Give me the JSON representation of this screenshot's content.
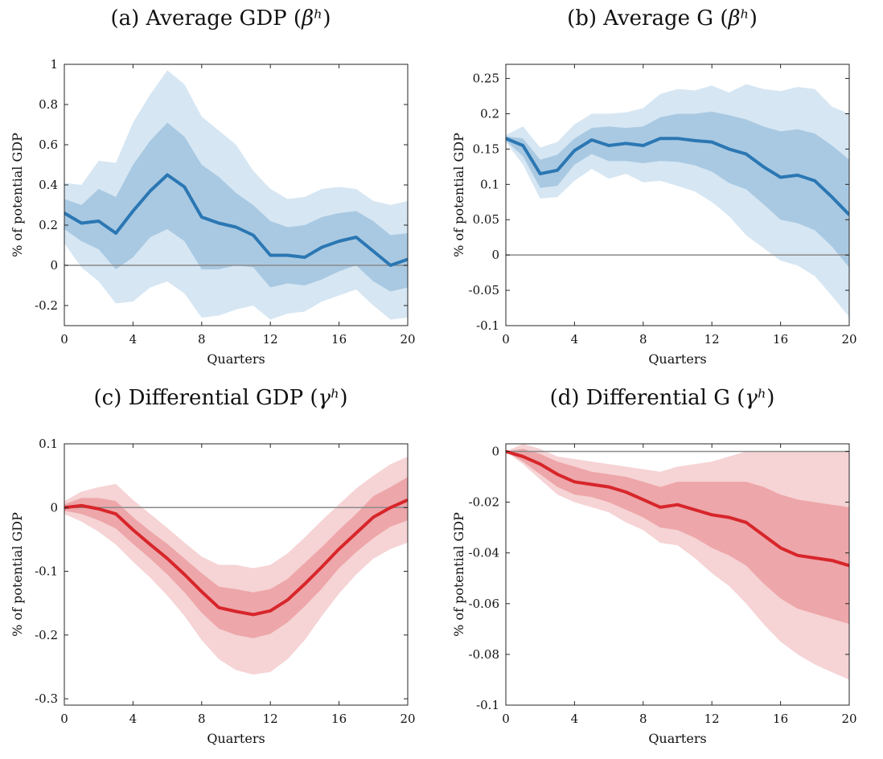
{
  "chart_data": [
    {
      "type": "line",
      "title_prefix": "(a) Average GDP (",
      "title_symbol": "βʰ",
      "title_suffix": ")",
      "xlabel": "Quarters",
      "ylabel": "% of potential GDP",
      "xlim": [
        0,
        20
      ],
      "ylim": [
        -0.3,
        1
      ],
      "xticks": [
        0,
        4,
        8,
        12,
        16,
        20
      ],
      "yticks": [
        -0.2,
        0,
        0.2,
        0.4,
        0.6,
        0.8,
        1
      ],
      "ytick_labels": [
        "-0.2",
        "0",
        "0.2",
        "0.4",
        "0.6",
        "0.8",
        "1"
      ],
      "color_line": "#2b77b3",
      "color_inner": "#a9c9e2",
      "color_outer": "#d6e6f3",
      "x": [
        0,
        1,
        2,
        3,
        4,
        5,
        6,
        7,
        8,
        9,
        10,
        11,
        12,
        13,
        14,
        15,
        16,
        17,
        18,
        19,
        20
      ],
      "series": [
        {
          "role": "estimate",
          "values": [
            0.26,
            0.21,
            0.22,
            0.16,
            0.27,
            0.37,
            0.45,
            0.39,
            0.24,
            0.21,
            0.19,
            0.15,
            0.05,
            0.05,
            0.04,
            0.09,
            0.12,
            0.14,
            0.07,
            0.0,
            0.03
          ]
        },
        {
          "role": "inner_upper",
          "values": [
            0.33,
            0.3,
            0.38,
            0.34,
            0.5,
            0.62,
            0.71,
            0.64,
            0.5,
            0.44,
            0.36,
            0.3,
            0.22,
            0.19,
            0.2,
            0.24,
            0.26,
            0.27,
            0.22,
            0.15,
            0.16
          ]
        },
        {
          "role": "inner_lower",
          "values": [
            0.18,
            0.12,
            0.08,
            -0.02,
            0.04,
            0.14,
            0.18,
            0.12,
            -0.02,
            -0.02,
            0.0,
            -0.01,
            -0.11,
            -0.09,
            -0.1,
            -0.07,
            -0.03,
            0.0,
            -0.08,
            -0.13,
            -0.11
          ]
        },
        {
          "role": "outer_upper",
          "values": [
            0.41,
            0.4,
            0.52,
            0.51,
            0.71,
            0.85,
            0.97,
            0.9,
            0.74,
            0.67,
            0.6,
            0.47,
            0.38,
            0.33,
            0.34,
            0.38,
            0.39,
            0.38,
            0.32,
            0.3,
            0.32
          ]
        },
        {
          "role": "outer_lower",
          "values": [
            0.11,
            -0.01,
            -0.08,
            -0.19,
            -0.18,
            -0.11,
            -0.08,
            -0.14,
            -0.26,
            -0.25,
            -0.22,
            -0.2,
            -0.27,
            -0.24,
            -0.23,
            -0.18,
            -0.15,
            -0.12,
            -0.2,
            -0.27,
            -0.26
          ]
        }
      ]
    },
    {
      "type": "line",
      "title_prefix": "(b) Average G (",
      "title_symbol": "βʰ",
      "title_suffix": ")",
      "xlabel": "Quarters",
      "ylabel": "% of potential GDP",
      "xlim": [
        0,
        20
      ],
      "ylim": [
        -0.1,
        0.27
      ],
      "xticks": [
        0,
        4,
        8,
        12,
        16,
        20
      ],
      "yticks": [
        -0.1,
        -0.05,
        0,
        0.05,
        0.1,
        0.15,
        0.2,
        0.25
      ],
      "ytick_labels": [
        "-0.1",
        "-0.05",
        "0",
        "0.05",
        "0.1",
        "0.15",
        "0.2",
        "0.25"
      ],
      "color_line": "#2b77b3",
      "color_inner": "#a9c9e2",
      "color_outer": "#d6e6f3",
      "x": [
        0,
        1,
        2,
        3,
        4,
        5,
        6,
        7,
        8,
        9,
        10,
        11,
        12,
        13,
        14,
        15,
        16,
        17,
        18,
        19,
        20
      ],
      "series": [
        {
          "role": "estimate",
          "values": [
            0.165,
            0.155,
            0.115,
            0.12,
            0.148,
            0.163,
            0.155,
            0.158,
            0.155,
            0.165,
            0.165,
            0.162,
            0.16,
            0.15,
            0.143,
            0.125,
            0.11,
            0.113,
            0.105,
            0.082,
            0.057
          ]
        },
        {
          "role": "inner_upper",
          "values": [
            0.168,
            0.165,
            0.135,
            0.142,
            0.165,
            0.18,
            0.182,
            0.18,
            0.182,
            0.195,
            0.2,
            0.2,
            0.203,
            0.198,
            0.192,
            0.182,
            0.175,
            0.178,
            0.172,
            0.155,
            0.135
          ]
        },
        {
          "role": "inner_lower",
          "values": [
            0.162,
            0.14,
            0.095,
            0.098,
            0.128,
            0.143,
            0.133,
            0.133,
            0.13,
            0.133,
            0.132,
            0.127,
            0.118,
            0.102,
            0.093,
            0.072,
            0.05,
            0.045,
            0.035,
            0.012,
            -0.018
          ]
        },
        {
          "role": "outer_upper",
          "values": [
            0.17,
            0.182,
            0.152,
            0.16,
            0.185,
            0.2,
            0.2,
            0.202,
            0.208,
            0.228,
            0.235,
            0.233,
            0.24,
            0.23,
            0.242,
            0.235,
            0.232,
            0.238,
            0.235,
            0.21,
            0.2
          ]
        },
        {
          "role": "outer_lower",
          "values": [
            0.16,
            0.128,
            0.08,
            0.082,
            0.105,
            0.122,
            0.108,
            0.115,
            0.103,
            0.105,
            0.098,
            0.09,
            0.075,
            0.055,
            0.028,
            0.01,
            -0.008,
            -0.015,
            -0.03,
            -0.058,
            -0.088
          ]
        }
      ]
    },
    {
      "type": "line",
      "title_prefix": "(c) Differential GDP (",
      "title_symbol": "γʰ",
      "title_suffix": ")",
      "xlabel": "Quarters",
      "ylabel": "% of potential GDP",
      "xlim": [
        0,
        20
      ],
      "ylim": [
        -0.31,
        0.1
      ],
      "xticks": [
        0,
        4,
        8,
        12,
        16,
        20
      ],
      "yticks": [
        -0.3,
        -0.2,
        -0.1,
        0,
        0.1
      ],
      "ytick_labels": [
        "-0.3",
        "-0.2",
        "-0.1",
        "0",
        "0.1"
      ],
      "color_line": "#d7262b",
      "color_inner": "#eda6a9",
      "color_outer": "#f6d3d5",
      "x": [
        0,
        1,
        2,
        3,
        4,
        5,
        6,
        7,
        8,
        9,
        10,
        11,
        12,
        13,
        14,
        15,
        16,
        17,
        18,
        19,
        20
      ],
      "series": [
        {
          "role": "estimate",
          "values": [
            0.0,
            0.003,
            -0.002,
            -0.01,
            -0.035,
            -0.058,
            -0.08,
            -0.105,
            -0.132,
            -0.157,
            -0.163,
            -0.168,
            -0.162,
            -0.145,
            -0.12,
            -0.093,
            -0.065,
            -0.04,
            -0.015,
            0.0,
            0.012
          ]
        },
        {
          "role": "inner_upper",
          "values": [
            0.005,
            0.015,
            0.015,
            0.01,
            -0.015,
            -0.037,
            -0.057,
            -0.08,
            -0.103,
            -0.124,
            -0.128,
            -0.133,
            -0.128,
            -0.112,
            -0.087,
            -0.062,
            -0.035,
            -0.01,
            0.018,
            0.032,
            0.048
          ]
        },
        {
          "role": "inner_lower",
          "values": [
            -0.005,
            -0.01,
            -0.02,
            -0.033,
            -0.057,
            -0.08,
            -0.105,
            -0.133,
            -0.165,
            -0.19,
            -0.2,
            -0.205,
            -0.198,
            -0.18,
            -0.155,
            -0.127,
            -0.095,
            -0.07,
            -0.048,
            -0.03,
            -0.02
          ]
        },
        {
          "role": "outer_upper",
          "values": [
            0.01,
            0.025,
            0.032,
            0.037,
            0.012,
            -0.01,
            -0.032,
            -0.055,
            -0.077,
            -0.09,
            -0.09,
            -0.095,
            -0.09,
            -0.072,
            -0.047,
            -0.02,
            0.005,
            0.03,
            0.05,
            0.068,
            0.08
          ]
        },
        {
          "role": "outer_lower",
          "values": [
            -0.01,
            -0.022,
            -0.038,
            -0.058,
            -0.085,
            -0.11,
            -0.138,
            -0.17,
            -0.208,
            -0.238,
            -0.255,
            -0.262,
            -0.258,
            -0.238,
            -0.208,
            -0.17,
            -0.135,
            -0.105,
            -0.08,
            -0.065,
            -0.055
          ]
        }
      ]
    },
    {
      "type": "line",
      "title_prefix": "(d) Differential G (",
      "title_symbol": "γʰ",
      "title_suffix": ")",
      "xlabel": "Quarters",
      "ylabel": "% of potential GDP",
      "xlim": [
        0,
        20
      ],
      "ylim": [
        -0.1,
        0.003
      ],
      "xticks": [
        0,
        4,
        8,
        12,
        16,
        20
      ],
      "yticks": [
        -0.1,
        -0.08,
        -0.06,
        -0.04,
        -0.02,
        0
      ],
      "ytick_labels": [
        "-0.1",
        "-0.08",
        "-0.06",
        "-0.04",
        "-0.02",
        "0"
      ],
      "color_line": "#d7262b",
      "color_inner": "#eda6a9",
      "color_outer": "#f6d3d5",
      "x": [
        0,
        1,
        2,
        3,
        4,
        5,
        6,
        7,
        8,
        9,
        10,
        11,
        12,
        13,
        14,
        15,
        16,
        17,
        18,
        19,
        20
      ],
      "series": [
        {
          "role": "estimate",
          "values": [
            0.0,
            -0.002,
            -0.005,
            -0.009,
            -0.012,
            -0.013,
            -0.014,
            -0.016,
            -0.019,
            -0.022,
            -0.021,
            -0.023,
            -0.025,
            -0.026,
            -0.028,
            -0.033,
            -0.038,
            -0.041,
            -0.042,
            -0.043,
            -0.045
          ]
        },
        {
          "role": "inner_upper",
          "values": [
            0.0,
            0.001,
            -0.001,
            -0.004,
            -0.006,
            -0.008,
            -0.009,
            -0.01,
            -0.012,
            -0.014,
            -0.012,
            -0.012,
            -0.012,
            -0.012,
            -0.012,
            -0.014,
            -0.017,
            -0.019,
            -0.02,
            -0.021,
            -0.022
          ]
        },
        {
          "role": "inner_lower",
          "values": [
            0.0,
            -0.004,
            -0.009,
            -0.014,
            -0.017,
            -0.018,
            -0.02,
            -0.023,
            -0.026,
            -0.03,
            -0.031,
            -0.034,
            -0.038,
            -0.041,
            -0.045,
            -0.052,
            -0.058,
            -0.062,
            -0.064,
            -0.066,
            -0.068
          ]
        },
        {
          "role": "outer_upper",
          "values": [
            0.0,
            0.003,
            0.001,
            -0.002,
            -0.003,
            -0.004,
            -0.005,
            -0.006,
            -0.007,
            -0.008,
            -0.006,
            -0.005,
            -0.004,
            -0.002,
            0.0,
            0.0,
            0.0,
            0.0,
            0.0,
            0.0,
            0.0
          ]
        },
        {
          "role": "outer_lower",
          "values": [
            0.0,
            -0.005,
            -0.011,
            -0.017,
            -0.02,
            -0.022,
            -0.024,
            -0.028,
            -0.031,
            -0.036,
            -0.037,
            -0.042,
            -0.048,
            -0.053,
            -0.06,
            -0.068,
            -0.075,
            -0.08,
            -0.084,
            -0.087,
            -0.09
          ]
        }
      ]
    }
  ]
}
